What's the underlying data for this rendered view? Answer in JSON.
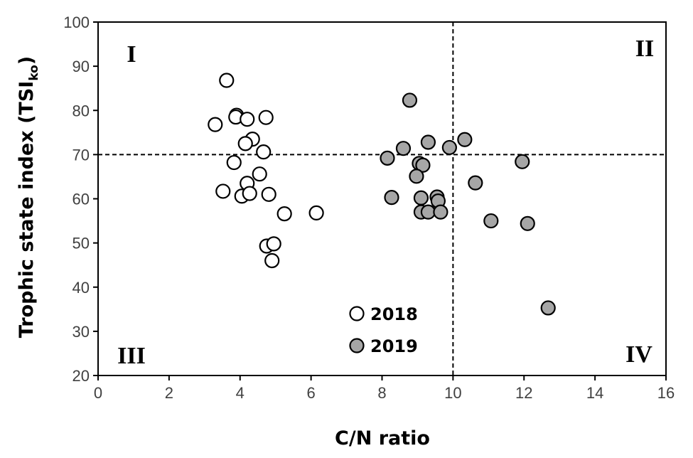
{
  "chart_data": {
    "type": "scatter",
    "xlabel": "C/N ratio",
    "ylabel": {
      "main": "Trophic state index (TSI",
      "sub": "ko",
      "end": ")"
    },
    "xlim": [
      0,
      16
    ],
    "ylim": [
      20,
      100
    ],
    "xticks": [
      "0",
      "2",
      "4",
      "6",
      "8",
      "10",
      "12",
      "14",
      "16"
    ],
    "yticks": [
      "20",
      "30",
      "40",
      "50",
      "60",
      "70",
      "80",
      "90",
      "100"
    ],
    "reference_lines": {
      "x": 10,
      "y": 70,
      "style": "dashed"
    },
    "quadrant_labels": {
      "top_left": "I",
      "top_right": "II",
      "bottom_left": "III",
      "bottom_right": "IV"
    },
    "legend": {
      "position": "bottom-center"
    },
    "series": [
      {
        "name": "2018",
        "color": "#ffffff",
        "points": [
          [
            3.62,
            86.8
          ],
          [
            3.3,
            76.8
          ],
          [
            3.9,
            78.9
          ],
          [
            3.88,
            78.5
          ],
          [
            4.2,
            78.0
          ],
          [
            4.73,
            78.4
          ],
          [
            4.35,
            73.5
          ],
          [
            4.15,
            72.5
          ],
          [
            4.66,
            70.6
          ],
          [
            3.83,
            68.2
          ],
          [
            4.55,
            65.6
          ],
          [
            4.2,
            63.5
          ],
          [
            3.52,
            61.7
          ],
          [
            4.05,
            60.6
          ],
          [
            4.27,
            61.2
          ],
          [
            4.81,
            61.0
          ],
          [
            5.25,
            56.6
          ],
          [
            6.15,
            56.8
          ],
          [
            4.75,
            49.3
          ],
          [
            4.95,
            49.8
          ],
          [
            4.9,
            46.0
          ]
        ]
      },
      {
        "name": "2019",
        "color": "#a6a6a6",
        "points": [
          [
            8.78,
            82.3
          ],
          [
            8.15,
            69.2
          ],
          [
            8.6,
            71.4
          ],
          [
            9.3,
            72.8
          ],
          [
            9.9,
            71.6
          ],
          [
            10.33,
            73.4
          ],
          [
            9.05,
            68.0
          ],
          [
            9.15,
            67.6
          ],
          [
            8.97,
            65.1
          ],
          [
            10.63,
            63.6
          ],
          [
            11.95,
            68.4
          ],
          [
            8.27,
            60.3
          ],
          [
            9.1,
            60.2
          ],
          [
            9.55,
            60.4
          ],
          [
            9.58,
            59.5
          ],
          [
            9.1,
            57.0
          ],
          [
            9.3,
            57.0
          ],
          [
            9.65,
            57.0
          ],
          [
            11.07,
            55.0
          ],
          [
            12.1,
            54.4
          ],
          [
            12.68,
            35.3
          ]
        ]
      }
    ]
  }
}
